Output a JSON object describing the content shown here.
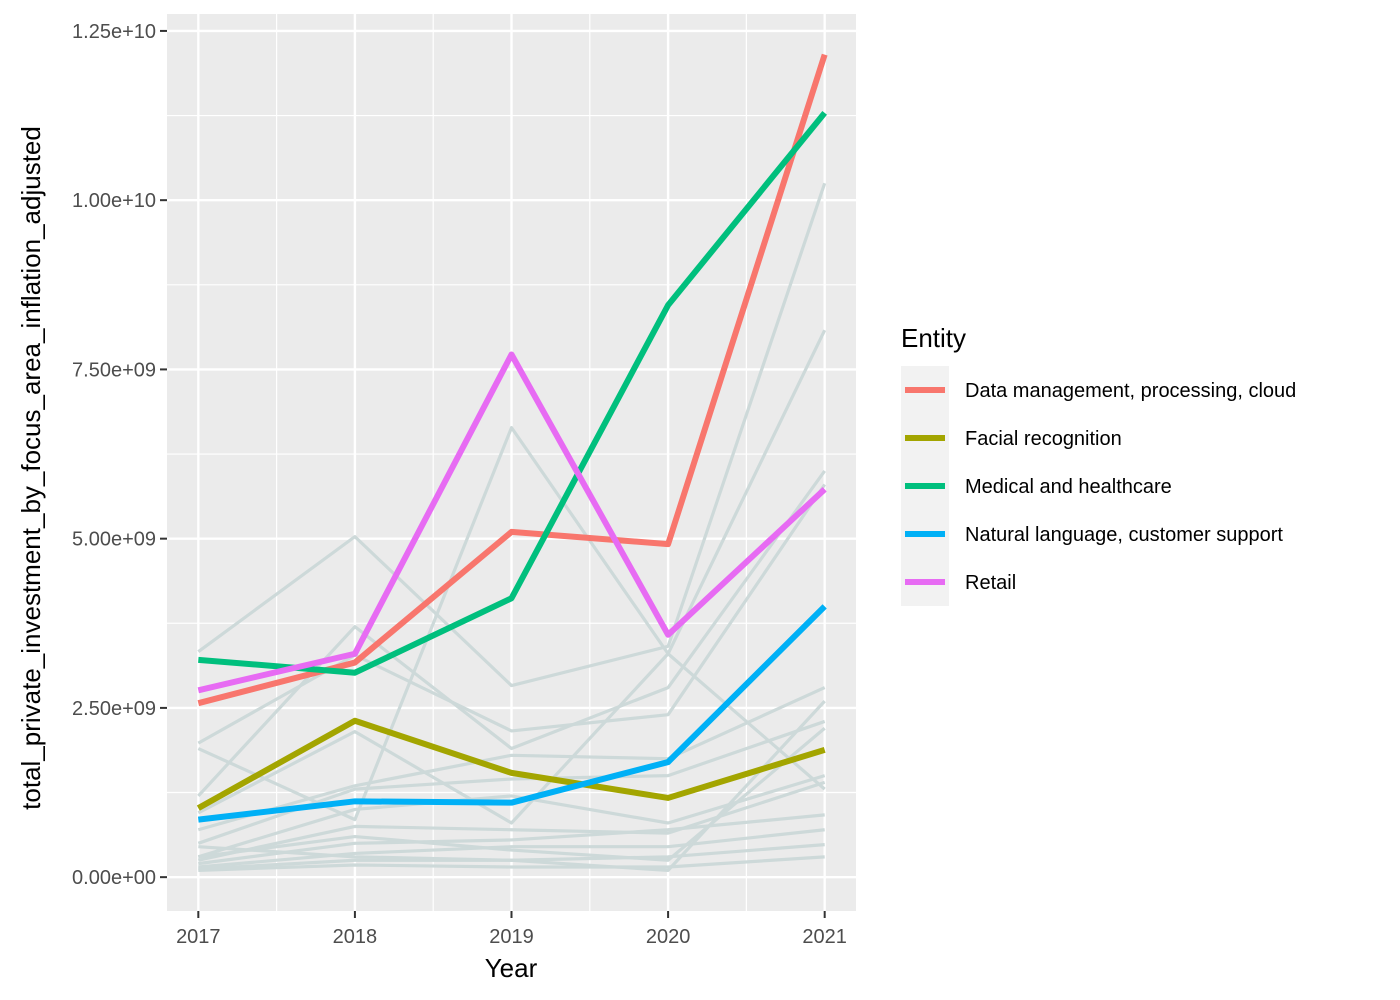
{
  "chart_data": {
    "type": "line",
    "xlabel": "Year",
    "ylabel": "total_private_investment_by_focus_area_inflation_adjusted",
    "x": [
      2017,
      2018,
      2019,
      2020,
      2021
    ],
    "xlim": [
      2016.8,
      2021.2
    ],
    "ylim": [
      -500000000,
      12750000000
    ],
    "y_ticks": [
      0,
      2500000000,
      5000000000,
      7500000000,
      10000000000,
      12500000000
    ],
    "y_tick_labels": [
      "0.00e+00",
      "2.50e+09",
      "5.00e+09",
      "7.50e+09",
      "1.00e+10",
      "1.25e+10"
    ],
    "x_tick_labels": [
      "2017",
      "2018",
      "2019",
      "2020",
      "2021"
    ],
    "grid": true,
    "legend": {
      "title": "Entity",
      "position": "right"
    },
    "series": [
      {
        "name": "Data management, processing, cloud",
        "color": "#F8766D",
        "highlight": true,
        "values": [
          2570000000,
          3170000000,
          5100000000,
          4920000000,
          12150000000
        ]
      },
      {
        "name": "Facial recognition",
        "color": "#A3A500",
        "highlight": true,
        "values": [
          1020000000,
          2310000000,
          1540000000,
          1170000000,
          1880000000
        ]
      },
      {
        "name": "Medical and healthcare",
        "color": "#00BF7D",
        "highlight": true,
        "values": [
          3210000000,
          3020000000,
          4120000000,
          8450000000,
          11290000000
        ]
      },
      {
        "name": "Natural language, customer support",
        "color": "#00B0F6",
        "highlight": true,
        "values": [
          850000000,
          1120000000,
          1100000000,
          1700000000,
          4000000000
        ]
      },
      {
        "name": "Retail",
        "color": "#E76BF3",
        "highlight": true,
        "values": [
          2760000000,
          3300000000,
          7720000000,
          3580000000,
          5730000000
        ]
      },
      {
        "color": "#CDD9D9",
        "highlight": false,
        "values": [
          3330000000,
          5030000000,
          2830000000,
          3410000000,
          10250000000
        ]
      },
      {
        "color": "#CDD9D9",
        "highlight": false,
        "values": [
          1900000000,
          850000000,
          6640000000,
          3300000000,
          8080000000
        ]
      },
      {
        "color": "#CDD9D9",
        "highlight": false,
        "values": [
          1200000000,
          3700000000,
          1900000000,
          2800000000,
          6000000000
        ]
      },
      {
        "color": "#CDD9D9",
        "highlight": false,
        "values": [
          1980000000,
          3280000000,
          2160000000,
          2400000000,
          5800000000
        ]
      },
      {
        "color": "#CDD9D9",
        "highlight": false,
        "values": [
          950000000,
          2150000000,
          800000000,
          3300000000,
          1300000000
        ]
      },
      {
        "color": "#CDD9D9",
        "highlight": false,
        "values": [
          700000000,
          1350000000,
          1800000000,
          1750000000,
          2800000000
        ]
      },
      {
        "color": "#CDD9D9",
        "highlight": false,
        "values": [
          500000000,
          1300000000,
          1450000000,
          1500000000,
          2300000000
        ]
      },
      {
        "color": "#CDD9D9",
        "highlight": false,
        "values": [
          300000000,
          1000000000,
          1200000000,
          800000000,
          1500000000
        ]
      },
      {
        "color": "#CDD9D9",
        "highlight": false,
        "values": [
          250000000,
          750000000,
          700000000,
          650000000,
          1400000000
        ]
      },
      {
        "color": "#CDD9D9",
        "highlight": false,
        "values": [
          200000000,
          500000000,
          550000000,
          700000000,
          920000000
        ]
      },
      {
        "color": "#CDD9D9",
        "highlight": false,
        "values": [
          150000000,
          350000000,
          450000000,
          450000000,
          700000000
        ]
      },
      {
        "color": "#CDD9D9",
        "highlight": false,
        "values": [
          120000000,
          250000000,
          250000000,
          300000000,
          480000000
        ]
      },
      {
        "color": "#CDD9D9",
        "highlight": false,
        "values": [
          100000000,
          180000000,
          150000000,
          150000000,
          300000000
        ]
      },
      {
        "color": "#CDD9D9",
        "highlight": false,
        "values": [
          300000000,
          600000000,
          400000000,
          250000000,
          2200000000
        ]
      },
      {
        "color": "#CDD9D9",
        "highlight": false,
        "values": [
          450000000,
          300000000,
          250000000,
          100000000,
          2600000000
        ]
      }
    ]
  }
}
